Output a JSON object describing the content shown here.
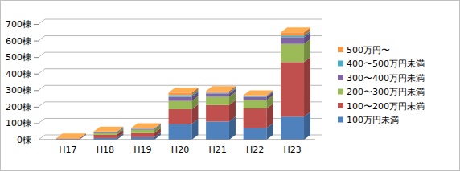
{
  "chart_data": {
    "type": "bar",
    "stacked": true,
    "grid": true,
    "legend": "right",
    "categories": [
      "H17",
      "H18",
      "H19",
      "H20",
      "H21",
      "H22",
      "H23"
    ],
    "ylim": [
      0,
      700
    ],
    "yticks": [
      {
        "value": 0,
        "label": "0棟"
      },
      {
        "value": 100,
        "label": "100棟"
      },
      {
        "value": 200,
        "label": "200棟"
      },
      {
        "value": 300,
        "label": "300棟"
      },
      {
        "value": 400,
        "label": "400棟"
      },
      {
        "value": 500,
        "label": "500棟"
      },
      {
        "value": 600,
        "label": "600棟"
      },
      {
        "value": 700,
        "label": "700棟"
      }
    ],
    "series": [
      {
        "name": "100万円未満",
        "color": "#4f81bd",
        "values": [
          3,
          10,
          15,
          95,
          110,
          70,
          140
        ]
      },
      {
        "name": "100〜200万円未満",
        "color": "#c0504d",
        "values": [
          4,
          20,
          25,
          90,
          100,
          120,
          330
        ]
      },
      {
        "name": "200〜300万円未満",
        "color": "#9bbb59",
        "values": [
          1,
          10,
          20,
          50,
          50,
          50,
          110
        ]
      },
      {
        "name": "300〜400万円未満",
        "color": "#8064a2",
        "values": [
          0,
          5,
          5,
          25,
          20,
          20,
          40
        ]
      },
      {
        "name": "400〜500万円未満",
        "color": "#4bacc6",
        "values": [
          0,
          2,
          2,
          10,
          5,
          5,
          10
        ]
      },
      {
        "name": "500万円〜",
        "color": "#f79646",
        "values": [
          1,
          3,
          3,
          15,
          10,
          5,
          20
        ]
      }
    ]
  }
}
